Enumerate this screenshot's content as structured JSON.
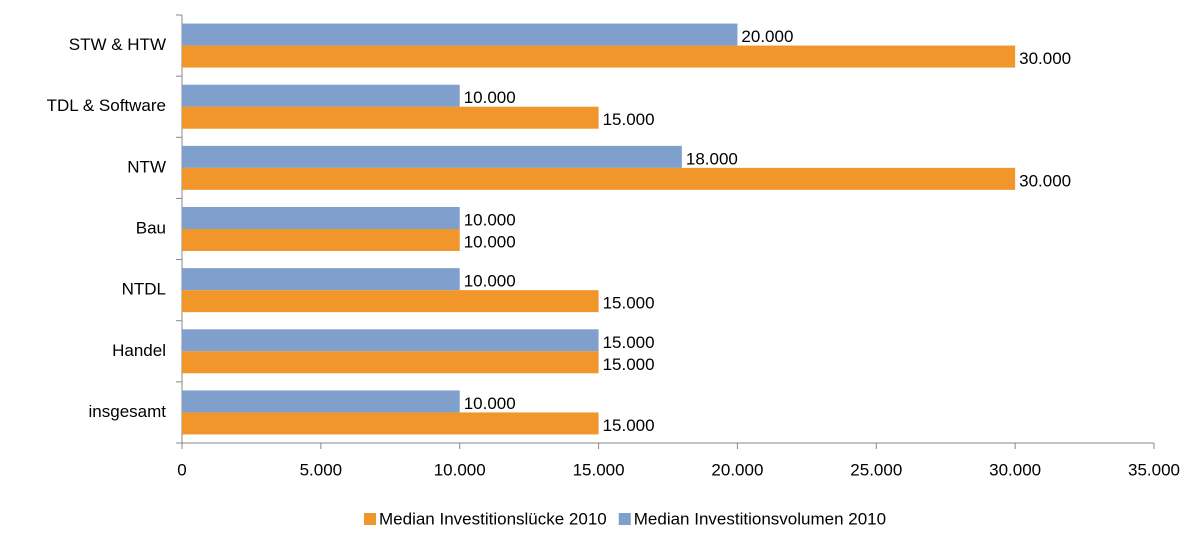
{
  "chart_data": {
    "type": "bar",
    "orientation": "horizontal",
    "categories": [
      "STW & HTW",
      "TDL & Software",
      "NTW",
      "Bau",
      "NTDL",
      "Handel",
      "insgesamt"
    ],
    "series": [
      {
        "name": "Median Investitionslücke 2010",
        "color": "#f0962a",
        "values": [
          30000,
          15000,
          30000,
          10000,
          15000,
          15000,
          15000
        ],
        "value_labels": [
          "30.000",
          "15.000",
          "30.000",
          "10.000",
          "15.000",
          "15.000",
          "15.000"
        ]
      },
      {
        "name": "Median Investitionsvolumen 2010",
        "color": "#7f9fcd",
        "values": [
          20000,
          10000,
          18000,
          10000,
          10000,
          15000,
          10000
        ],
        "value_labels": [
          "20.000",
          "10.000",
          "18.000",
          "10.000",
          "10.000",
          "15.000",
          "10.000"
        ]
      }
    ],
    "xlim": [
      0,
      35000
    ],
    "xticks": [
      0,
      {
        "value": 5000,
        "label": "5.000"
      },
      {
        "value": 10000,
        "label": "10.000"
      },
      {
        "value": 15000,
        "label": "15.000"
      },
      {
        "value": 20000,
        "label": "20.000"
      },
      {
        "value": 25000,
        "label": "25.000"
      },
      {
        "value": 30000,
        "label": "30.000"
      },
      {
        "value": 35000,
        "label": "35.000"
      }
    ],
    "legend": "bottom"
  }
}
